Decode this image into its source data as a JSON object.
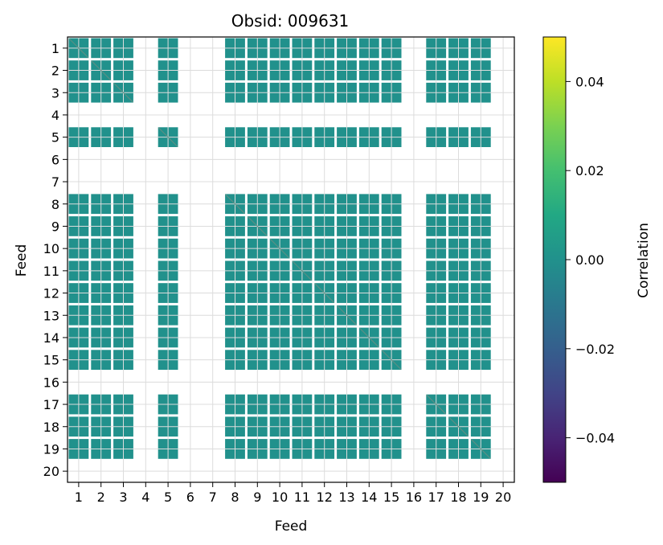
{
  "chart_data": {
    "type": "heatmap",
    "title": "Obsid: 009631",
    "xlabel": "Feed",
    "ylabel": "Feed",
    "feeds": [
      1,
      2,
      3,
      4,
      5,
      6,
      7,
      8,
      9,
      10,
      11,
      12,
      13,
      14,
      15,
      16,
      17,
      18,
      19,
      20
    ],
    "tick_labels": [
      "1",
      "2",
      "3",
      "4",
      "5",
      "6",
      "7",
      "8",
      "9",
      "10",
      "11",
      "12",
      "13",
      "14",
      "15",
      "16",
      "17",
      "18",
      "19",
      "20"
    ],
    "active_feeds": [
      1,
      2,
      3,
      5,
      8,
      9,
      10,
      11,
      12,
      13,
      14,
      15,
      17,
      18,
      19
    ],
    "inactive_feeds": [
      4,
      6,
      7,
      16,
      20
    ],
    "cell_value": 0.0,
    "cell_color": "#21918c",
    "diagonal_color": "#5b8f85",
    "grid": true,
    "colorbar": {
      "label": "Correlation",
      "vmin": -0.05,
      "vmax": 0.05,
      "ticks": [
        0.04,
        0.02,
        0.0,
        -0.02,
        -0.04
      ],
      "tick_labels": [
        "0.04",
        "0.02",
        "0.00",
        "−0.02",
        "−0.04"
      ],
      "colormap": "viridis"
    }
  }
}
